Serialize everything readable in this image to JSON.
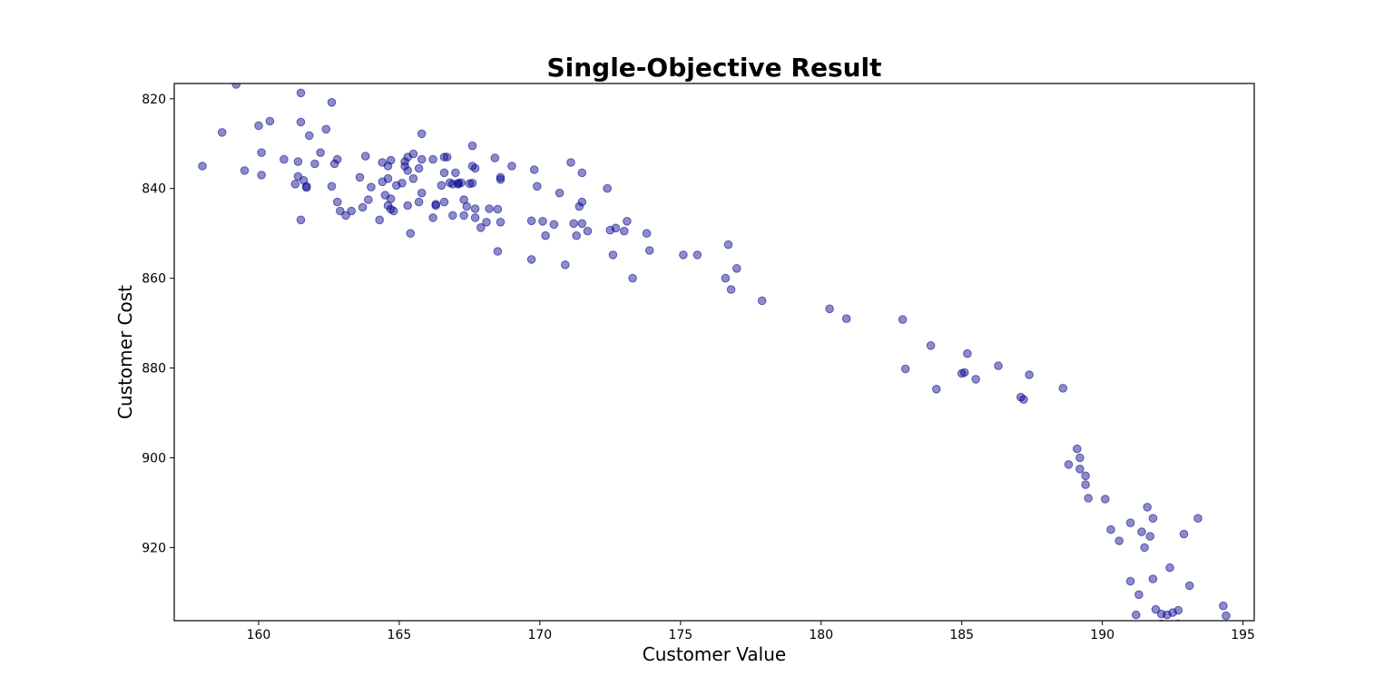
{
  "chart_data": {
    "type": "scatter",
    "title": "Single-Objective Result",
    "xlabel": "Customer Value",
    "ylabel": "Customer Cost",
    "xlim": [
      157,
      195.4
    ],
    "ylim": [
      936.3,
      816.6
    ],
    "y_inverted": true,
    "x_ticks": [
      "160",
      "165",
      "170",
      "175",
      "180",
      "185",
      "190",
      "195"
    ],
    "y_ticks": [
      "820",
      "840",
      "860",
      "880",
      "900",
      "920"
    ],
    "grid": false,
    "marker_color": "#00008b",
    "marker_alpha": 0.45,
    "points": [
      {
        "x": 158.0,
        "y": 835.0
      },
      {
        "x": 158.7,
        "y": 827.5
      },
      {
        "x": 159.2,
        "y": 816.8
      },
      {
        "x": 159.5,
        "y": 836.0
      },
      {
        "x": 160.0,
        "y": 826.0
      },
      {
        "x": 160.1,
        "y": 832.0
      },
      {
        "x": 160.1,
        "y": 837.0
      },
      {
        "x": 160.4,
        "y": 825.0
      },
      {
        "x": 160.9,
        "y": 833.5
      },
      {
        "x": 161.3,
        "y": 839.0
      },
      {
        "x": 161.4,
        "y": 834.0
      },
      {
        "x": 161.4,
        "y": 837.3
      },
      {
        "x": 161.5,
        "y": 818.7
      },
      {
        "x": 161.5,
        "y": 825.2
      },
      {
        "x": 161.5,
        "y": 847.0
      },
      {
        "x": 161.6,
        "y": 838.2
      },
      {
        "x": 161.7,
        "y": 839.5
      },
      {
        "x": 161.7,
        "y": 839.8
      },
      {
        "x": 161.8,
        "y": 828.2
      },
      {
        "x": 162.0,
        "y": 834.5
      },
      {
        "x": 162.2,
        "y": 832.0
      },
      {
        "x": 162.4,
        "y": 826.8
      },
      {
        "x": 162.6,
        "y": 820.8
      },
      {
        "x": 162.6,
        "y": 839.5
      },
      {
        "x": 162.7,
        "y": 834.5
      },
      {
        "x": 162.8,
        "y": 843.0
      },
      {
        "x": 162.8,
        "y": 833.5
      },
      {
        "x": 162.9,
        "y": 845.0
      },
      {
        "x": 163.1,
        "y": 846.0
      },
      {
        "x": 163.3,
        "y": 845.0
      },
      {
        "x": 163.6,
        "y": 837.5
      },
      {
        "x": 163.7,
        "y": 844.2
      },
      {
        "x": 163.8,
        "y": 832.8
      },
      {
        "x": 163.9,
        "y": 842.5
      },
      {
        "x": 164.0,
        "y": 839.7
      },
      {
        "x": 164.3,
        "y": 847.0
      },
      {
        "x": 164.4,
        "y": 834.2
      },
      {
        "x": 164.4,
        "y": 838.5
      },
      {
        "x": 164.5,
        "y": 841.5
      },
      {
        "x": 164.6,
        "y": 843.8
      },
      {
        "x": 164.6,
        "y": 835.0
      },
      {
        "x": 164.6,
        "y": 837.8
      },
      {
        "x": 164.7,
        "y": 842.3
      },
      {
        "x": 164.7,
        "y": 833.7
      },
      {
        "x": 164.7,
        "y": 844.6
      },
      {
        "x": 164.8,
        "y": 845.0
      },
      {
        "x": 164.9,
        "y": 839.3
      },
      {
        "x": 165.1,
        "y": 838.8
      },
      {
        "x": 165.2,
        "y": 835.0
      },
      {
        "x": 165.2,
        "y": 834.0
      },
      {
        "x": 165.3,
        "y": 836.0
      },
      {
        "x": 165.3,
        "y": 843.8
      },
      {
        "x": 165.3,
        "y": 833.0
      },
      {
        "x": 165.4,
        "y": 850.0
      },
      {
        "x": 165.5,
        "y": 832.3
      },
      {
        "x": 165.5,
        "y": 837.8
      },
      {
        "x": 165.7,
        "y": 843.0
      },
      {
        "x": 165.7,
        "y": 835.5
      },
      {
        "x": 165.8,
        "y": 833.5
      },
      {
        "x": 165.8,
        "y": 827.8
      },
      {
        "x": 165.8,
        "y": 841.0
      },
      {
        "x": 166.2,
        "y": 833.5
      },
      {
        "x": 166.2,
        "y": 846.5
      },
      {
        "x": 166.3,
        "y": 843.5
      },
      {
        "x": 166.3,
        "y": 843.8
      },
      {
        "x": 166.5,
        "y": 839.3
      },
      {
        "x": 166.6,
        "y": 833.0
      },
      {
        "x": 166.6,
        "y": 843.0
      },
      {
        "x": 166.6,
        "y": 836.5
      },
      {
        "x": 166.7,
        "y": 833.0
      },
      {
        "x": 166.8,
        "y": 838.7
      },
      {
        "x": 166.9,
        "y": 846.0
      },
      {
        "x": 166.9,
        "y": 839.0
      },
      {
        "x": 167.0,
        "y": 836.5
      },
      {
        "x": 167.1,
        "y": 839.0
      },
      {
        "x": 167.1,
        "y": 838.8
      },
      {
        "x": 167.2,
        "y": 838.7
      },
      {
        "x": 167.3,
        "y": 846.0
      },
      {
        "x": 167.3,
        "y": 842.5
      },
      {
        "x": 167.4,
        "y": 844.0
      },
      {
        "x": 167.5,
        "y": 838.9
      },
      {
        "x": 167.6,
        "y": 838.8
      },
      {
        "x": 167.6,
        "y": 830.5
      },
      {
        "x": 167.6,
        "y": 835.0
      },
      {
        "x": 167.7,
        "y": 835.5
      },
      {
        "x": 167.7,
        "y": 844.5
      },
      {
        "x": 167.7,
        "y": 846.5
      },
      {
        "x": 167.9,
        "y": 848.7
      },
      {
        "x": 168.1,
        "y": 847.5
      },
      {
        "x": 168.2,
        "y": 844.5
      },
      {
        "x": 168.4,
        "y": 833.2
      },
      {
        "x": 168.5,
        "y": 854.0
      },
      {
        "x": 168.5,
        "y": 844.6
      },
      {
        "x": 168.6,
        "y": 847.5
      },
      {
        "x": 168.6,
        "y": 838.0
      },
      {
        "x": 168.6,
        "y": 837.5
      },
      {
        "x": 169.0,
        "y": 835.0
      },
      {
        "x": 169.7,
        "y": 847.2
      },
      {
        "x": 169.7,
        "y": 855.8
      },
      {
        "x": 169.8,
        "y": 835.8
      },
      {
        "x": 169.9,
        "y": 839.5
      },
      {
        "x": 170.1,
        "y": 847.3
      },
      {
        "x": 170.2,
        "y": 850.5
      },
      {
        "x": 170.5,
        "y": 848.0
      },
      {
        "x": 170.7,
        "y": 841.0
      },
      {
        "x": 170.9,
        "y": 857.0
      },
      {
        "x": 171.1,
        "y": 834.2
      },
      {
        "x": 171.2,
        "y": 847.8
      },
      {
        "x": 171.3,
        "y": 850.5
      },
      {
        "x": 171.4,
        "y": 844.0
      },
      {
        "x": 171.5,
        "y": 847.8
      },
      {
        "x": 171.5,
        "y": 836.5
      },
      {
        "x": 171.5,
        "y": 843.0
      },
      {
        "x": 171.7,
        "y": 849.5
      },
      {
        "x": 172.4,
        "y": 840.0
      },
      {
        "x": 172.5,
        "y": 849.3
      },
      {
        "x": 172.6,
        "y": 854.8
      },
      {
        "x": 172.7,
        "y": 848.8
      },
      {
        "x": 173.0,
        "y": 849.5
      },
      {
        "x": 173.1,
        "y": 847.3
      },
      {
        "x": 173.3,
        "y": 860.0
      },
      {
        "x": 173.8,
        "y": 850.0
      },
      {
        "x": 173.9,
        "y": 853.8
      },
      {
        "x": 175.1,
        "y": 854.8
      },
      {
        "x": 175.6,
        "y": 854.8
      },
      {
        "x": 176.6,
        "y": 860.0
      },
      {
        "x": 176.7,
        "y": 852.5
      },
      {
        "x": 176.8,
        "y": 862.5
      },
      {
        "x": 177.0,
        "y": 857.8
      },
      {
        "x": 177.9,
        "y": 865.0
      },
      {
        "x": 180.3,
        "y": 866.8
      },
      {
        "x": 180.9,
        "y": 869.0
      },
      {
        "x": 182.9,
        "y": 869.2
      },
      {
        "x": 183.0,
        "y": 880.2
      },
      {
        "x": 183.9,
        "y": 875.0
      },
      {
        "x": 184.1,
        "y": 884.7
      },
      {
        "x": 185.0,
        "y": 881.2
      },
      {
        "x": 185.1,
        "y": 881.0
      },
      {
        "x": 185.2,
        "y": 876.8
      },
      {
        "x": 185.5,
        "y": 882.5
      },
      {
        "x": 186.3,
        "y": 879.5
      },
      {
        "x": 187.1,
        "y": 886.5
      },
      {
        "x": 187.2,
        "y": 887.0
      },
      {
        "x": 187.4,
        "y": 881.5
      },
      {
        "x": 188.6,
        "y": 884.5
      },
      {
        "x": 188.8,
        "y": 901.5
      },
      {
        "x": 189.1,
        "y": 898.0
      },
      {
        "x": 189.2,
        "y": 900.0
      },
      {
        "x": 189.2,
        "y": 902.5
      },
      {
        "x": 189.4,
        "y": 904.0
      },
      {
        "x": 189.4,
        "y": 906.0
      },
      {
        "x": 189.5,
        "y": 909.0
      },
      {
        "x": 190.1,
        "y": 909.2
      },
      {
        "x": 190.3,
        "y": 916.0
      },
      {
        "x": 190.6,
        "y": 918.5
      },
      {
        "x": 191.0,
        "y": 914.5
      },
      {
        "x": 191.0,
        "y": 927.5
      },
      {
        "x": 191.2,
        "y": 935.0
      },
      {
        "x": 191.3,
        "y": 930.5
      },
      {
        "x": 191.4,
        "y": 916.5
      },
      {
        "x": 191.5,
        "y": 920.0
      },
      {
        "x": 191.6,
        "y": 911.0
      },
      {
        "x": 191.7,
        "y": 917.5
      },
      {
        "x": 191.8,
        "y": 913.5
      },
      {
        "x": 191.8,
        "y": 927.0
      },
      {
        "x": 191.9,
        "y": 933.8
      },
      {
        "x": 192.1,
        "y": 937.0
      },
      {
        "x": 192.1,
        "y": 934.8
      },
      {
        "x": 192.3,
        "y": 935.0
      },
      {
        "x": 192.4,
        "y": 924.5
      },
      {
        "x": 192.5,
        "y": 938.0
      },
      {
        "x": 192.5,
        "y": 934.5
      },
      {
        "x": 192.7,
        "y": 937.0
      },
      {
        "x": 192.7,
        "y": 934.0
      },
      {
        "x": 192.9,
        "y": 917.0
      },
      {
        "x": 193.1,
        "y": 928.5
      },
      {
        "x": 193.4,
        "y": 913.5
      },
      {
        "x": 193.6,
        "y": 937.7
      },
      {
        "x": 194.3,
        "y": 933.0
      },
      {
        "x": 194.4,
        "y": 935.2
      }
    ]
  }
}
